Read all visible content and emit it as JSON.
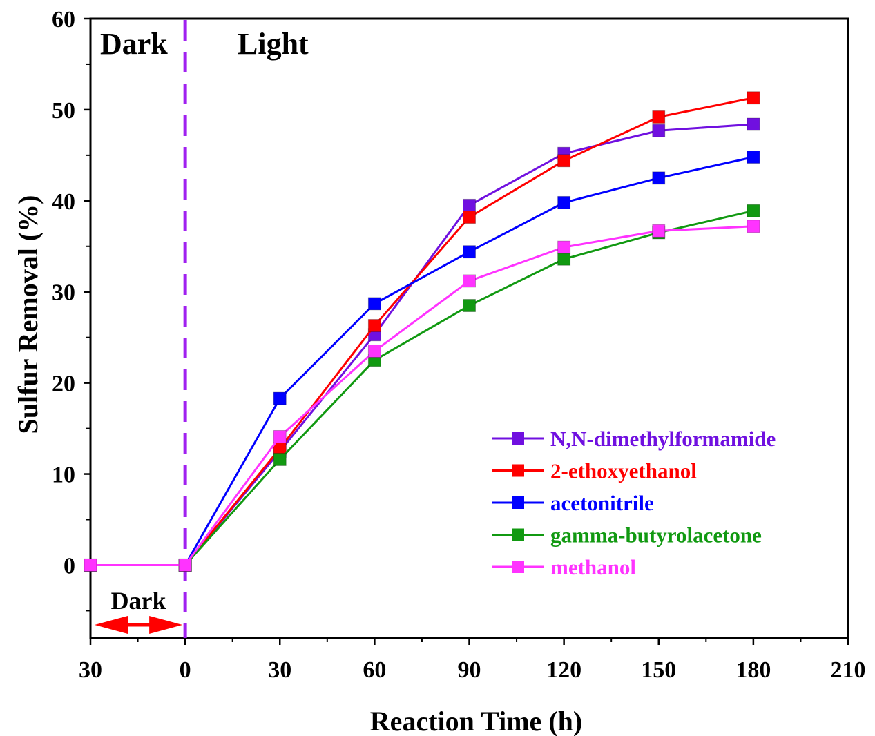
{
  "chart_data": {
    "type": "line",
    "xlabel": "Reaction Time (h)",
    "ylabel": "Sulfur Removal (%)",
    "xlim": [
      -30,
      210
    ],
    "ylim": [
      -8,
      60
    ],
    "x_ticks": [
      -30,
      0,
      30,
      60,
      90,
      120,
      150,
      180,
      210
    ],
    "x_tick_labels": [
      "30",
      "0",
      "30",
      "60",
      "90",
      "120",
      "150",
      "180",
      "210"
    ],
    "y_ticks": [
      0,
      10,
      20,
      30,
      40,
      50,
      60
    ],
    "y_tick_labels": [
      "0",
      "10",
      "20",
      "30",
      "40",
      "50",
      "60"
    ],
    "x": [
      -30,
      0,
      30,
      60,
      90,
      120,
      150,
      180
    ],
    "series": [
      {
        "name": "N,N-dimethylformamide",
        "color": "#7010E0",
        "values": [
          0,
          0,
          12.5,
          25.3,
          39.5,
          45.2,
          47.7,
          48.4
        ]
      },
      {
        "name": "2-ethoxyethanol",
        "color": "#FF0000",
        "values": [
          0,
          0,
          12.8,
          26.3,
          38.2,
          44.4,
          49.2,
          51.3
        ]
      },
      {
        "name": "acetonitrile",
        "color": "#0000FF",
        "values": [
          0,
          0,
          18.3,
          28.7,
          34.4,
          39.8,
          42.5,
          44.8
        ]
      },
      {
        "name": "gamma-butyrolacetone",
        "color": "#119911",
        "values": [
          0,
          0,
          11.6,
          22.5,
          28.5,
          33.6,
          36.5,
          38.9
        ]
      },
      {
        "name": "methanol",
        "color": "#FF33FF",
        "values": [
          0,
          0,
          14.1,
          23.5,
          31.2,
          34.9,
          36.7,
          37.2
        ]
      }
    ],
    "legend_position": "lower-right",
    "annotations": {
      "dark_top": "Dark",
      "light_top": "Light",
      "dark_arrow": "Dark",
      "divider_x": 0,
      "divider_color": "#A020F0",
      "arrow_color": "#FF0000",
      "arrow_range": [
        -30,
        0
      ]
    },
    "grid": false
  }
}
